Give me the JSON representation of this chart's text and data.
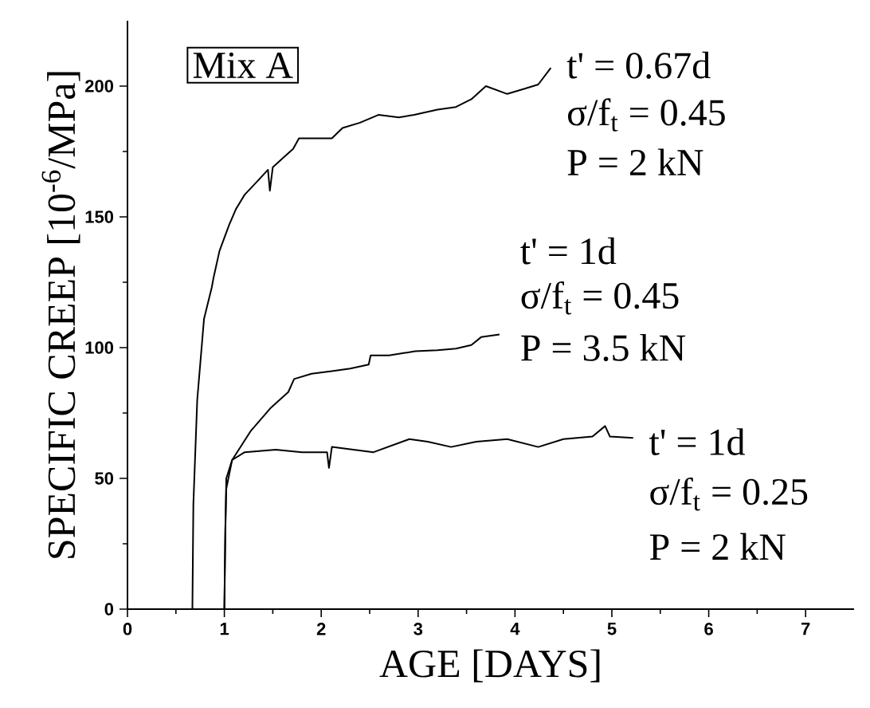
{
  "chart_data": {
    "type": "line",
    "xlabel": "AGE [DAYS]",
    "ylabel": "SPECIFIC CREEP [10$^{-6}$/MPa]",
    "xlim": [
      0,
      7.5
    ],
    "ylim": [
      0,
      225
    ],
    "xticks": [
      0,
      1,
      2,
      3,
      4,
      5,
      6,
      7
    ],
    "yticks": [
      0,
      50,
      100,
      150,
      200
    ],
    "series": [
      {
        "color": "#000000",
        "x": [
          0.67,
          0.68,
          0.72,
          0.79,
          0.87,
          0.89,
          0.95,
          1.05,
          1.12,
          1.21,
          1.35,
          1.45,
          1.47,
          1.5,
          1.62,
          1.71,
          1.77,
          1.95,
          2.11,
          2.22,
          2.4,
          2.59,
          2.8,
          2.96,
          3.2,
          3.39,
          3.55,
          3.7,
          3.92,
          4.1,
          4.24,
          4.37
        ],
        "values": [
          0,
          40,
          80,
          111,
          123,
          127,
          137,
          147,
          153,
          158.5,
          164,
          168,
          160,
          169,
          173,
          176,
          180,
          180,
          180,
          184,
          186,
          189,
          188,
          189,
          191,
          192,
          195,
          200,
          197,
          199,
          200.6,
          207
        ]
      },
      {
        "color": "#000000",
        "x": [
          1.0,
          1.01,
          1.02,
          1.08,
          1.27,
          1.48,
          1.66,
          1.72,
          1.9,
          2.11,
          2.3,
          2.49,
          2.51,
          2.7,
          2.97,
          3.2,
          3.39,
          3.55,
          3.65,
          3.84
        ],
        "values": [
          0,
          30,
          50,
          57,
          68,
          77,
          83,
          88,
          90,
          91,
          92,
          93.5,
          97,
          97,
          98.6,
          99,
          99.6,
          101,
          104,
          105
        ]
      },
      {
        "color": "#000000",
        "x": [
          1.0,
          1.01,
          1.02,
          1.08,
          1.21,
          1.53,
          1.8,
          2.06,
          2.08,
          2.11,
          2.54,
          2.91,
          3.1,
          3.34,
          3.6,
          3.92,
          4.24,
          4.5,
          4.8,
          4.93,
          4.98,
          5.22
        ],
        "values": [
          0,
          30,
          46,
          57,
          60,
          61,
          60,
          60,
          54,
          62,
          60,
          65,
          64,
          62,
          64,
          65,
          62,
          65,
          66,
          70,
          66,
          65.5
        ]
      }
    ],
    "annotations": [
      "Mix A",
      "t' = 0.67d",
      "σ/f$_{t}$ = 0.45",
      "P = 2 kN",
      "t' = 1d",
      "σ/f$_{t}$ = 0.45",
      "P = 3.5 kN",
      "t' = 1d",
      "σ/f$_{t}$ = 0.25",
      "P = 2 kN"
    ]
  }
}
